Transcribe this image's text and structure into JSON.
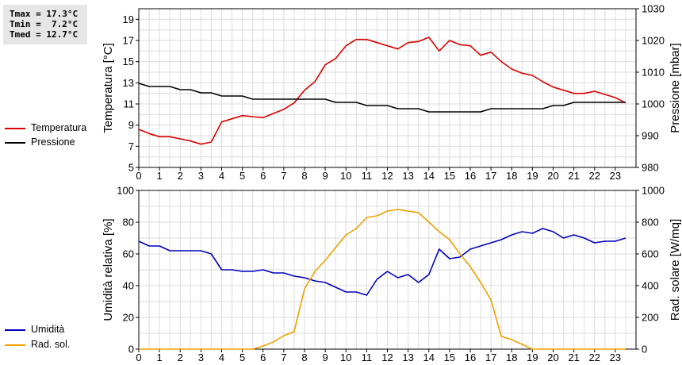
{
  "stats": {
    "tmax": "Tmax = 17.3°C",
    "tmin": "Tmin =  7.2°C",
    "tmed": "Tmed = 12.7°C"
  },
  "legend_top": [
    {
      "label": "Temperatura",
      "color": "#dd0000"
    },
    {
      "label": "Pressione",
      "color": "#000000"
    }
  ],
  "legend_bottom": [
    {
      "label": "Umidità",
      "color": "#0000bb"
    },
    {
      "label": "Rad. sol.",
      "color": "#f0a000"
    }
  ],
  "chart_data": [
    {
      "type": "line",
      "xlim": [
        0,
        24
      ],
      "x_ticks": [
        0,
        1,
        2,
        3,
        4,
        5,
        6,
        7,
        8,
        9,
        10,
        11,
        12,
        13,
        14,
        15,
        16,
        17,
        18,
        19,
        20,
        21,
        22,
        23
      ],
      "grid": true,
      "ylabel": "Temperatura [°C]",
      "ylim": [
        5,
        20
      ],
      "y_ticks": [
        5,
        7,
        9,
        11,
        13,
        15,
        17,
        19
      ],
      "y2label": "Pressione [mbar]",
      "y2lim": [
        980,
        1030
      ],
      "y2_ticks": [
        980,
        990,
        1000,
        1010,
        1020,
        1030
      ],
      "series": [
        {
          "name": "Temperatura",
          "axis": "left",
          "color": "#dd0000",
          "x": [
            0,
            0.5,
            1,
            1.5,
            2,
            2.5,
            3,
            3.5,
            4,
            4.5,
            5,
            5.5,
            6,
            6.5,
            7,
            7.5,
            8,
            8.5,
            9,
            9.5,
            10,
            10.5,
            11,
            11.5,
            12,
            12.5,
            13,
            13.5,
            14,
            14.5,
            15,
            15.5,
            16,
            16.5,
            17,
            17.5,
            18,
            18.5,
            19,
            19.5,
            20,
            20.5,
            21,
            21.5,
            22,
            22.5,
            23,
            23.5
          ],
          "values": [
            8.6,
            8.2,
            7.9,
            7.9,
            7.7,
            7.5,
            7.2,
            7.4,
            9.3,
            9.6,
            9.9,
            9.8,
            9.7,
            10.1,
            10.5,
            11.1,
            12.3,
            13.1,
            14.7,
            15.3,
            16.5,
            17.1,
            17.1,
            16.8,
            16.5,
            16.2,
            16.8,
            16.9,
            17.3,
            16.0,
            17.0,
            16.6,
            16.5,
            15.6,
            15.9,
            15.0,
            14.3,
            13.9,
            13.7,
            13.1,
            12.6,
            12.3,
            12.0,
            12.0,
            12.2,
            11.9,
            11.6,
            11.1
          ]
        },
        {
          "name": "Pressione",
          "axis": "right",
          "color": "#000000",
          "x": [
            0,
            0.5,
            1,
            1.5,
            2,
            2.5,
            3,
            3.5,
            4,
            4.5,
            5,
            5.5,
            6,
            6.5,
            7,
            7.5,
            8,
            8.5,
            9,
            9.5,
            10,
            10.5,
            11,
            11.5,
            12,
            12.5,
            13,
            13.5,
            14,
            14.5,
            15,
            15.5,
            16,
            16.5,
            17,
            17.5,
            18,
            18.5,
            19,
            19.5,
            20,
            20.5,
            21,
            21.5,
            22,
            22.5,
            23,
            23.5
          ],
          "values": [
            1006.5,
            1005.5,
            1005.5,
            1005.5,
            1004.5,
            1004.5,
            1003.5,
            1003.5,
            1002.5,
            1002.5,
            1002.5,
            1001.5,
            1001.5,
            1001.5,
            1001.5,
            1001.5,
            1001.5,
            1001.5,
            1001.5,
            1000.5,
            1000.5,
            1000.5,
            999.5,
            999.5,
            999.5,
            998.5,
            998.5,
            998.5,
            997.5,
            997.5,
            997.5,
            997.5,
            997.5,
            997.5,
            998.5,
            998.5,
            998.5,
            998.5,
            998.5,
            998.5,
            999.5,
            999.5,
            1000.5,
            1000.5,
            1000.5,
            1000.5,
            1000.5,
            1000.5
          ]
        }
      ]
    },
    {
      "type": "line",
      "xlim": [
        0,
        24
      ],
      "x_ticks": [
        0,
        1,
        2,
        3,
        4,
        5,
        6,
        7,
        8,
        9,
        10,
        11,
        12,
        13,
        14,
        15,
        16,
        17,
        18,
        19,
        20,
        21,
        22,
        23
      ],
      "grid": true,
      "ylabel": "Umidità relativa [%]",
      "ylim": [
        0,
        100
      ],
      "y_ticks": [
        0,
        20,
        40,
        60,
        80,
        100
      ],
      "y2label": "Rad. solare [W/mq]",
      "y2lim": [
        0,
        1000
      ],
      "y2_ticks": [
        0,
        200,
        400,
        600,
        800,
        1000
      ],
      "series": [
        {
          "name": "Umidità",
          "axis": "left",
          "color": "#0000bb",
          "x": [
            0,
            0.5,
            1,
            1.5,
            2,
            2.5,
            3,
            3.5,
            4,
            4.5,
            5,
            5.5,
            6,
            6.5,
            7,
            7.5,
            8,
            8.5,
            9,
            9.5,
            10,
            10.5,
            11,
            11.5,
            12,
            12.5,
            13,
            13.5,
            14,
            14.5,
            15,
            15.5,
            16,
            16.5,
            17,
            17.5,
            18,
            18.5,
            19,
            19.5,
            20,
            20.5,
            21,
            21.5,
            22,
            22.5,
            23,
            23.5
          ],
          "values": [
            68,
            65,
            65,
            62,
            62,
            62,
            62,
            60,
            50,
            50,
            49,
            49,
            50,
            48,
            48,
            46,
            45,
            43,
            42,
            39,
            36,
            36,
            34,
            44,
            49,
            45,
            47,
            42,
            47,
            63,
            57,
            58,
            63,
            65,
            67,
            69,
            72,
            74,
            73,
            76,
            74,
            70,
            72,
            70,
            67,
            68,
            68,
            70
          ]
        },
        {
          "name": "Rad. sol.",
          "axis": "right",
          "color": "#f0a000",
          "x": [
            0,
            0.5,
            1,
            1.5,
            2,
            2.5,
            3,
            3.5,
            4,
            4.5,
            5,
            5.5,
            6,
            6.5,
            7,
            7.5,
            8,
            8.5,
            9,
            9.5,
            10,
            10.5,
            11,
            11.5,
            12,
            12.5,
            13,
            13.5,
            14,
            14.5,
            15,
            15.5,
            16,
            16.5,
            17,
            17.5,
            18,
            18.5,
            19,
            19.5,
            20,
            20.5,
            21,
            21.5,
            22,
            22.5,
            23,
            23.5
          ],
          "values": [
            0,
            0,
            0,
            0,
            0,
            0,
            0,
            0,
            0,
            0,
            0,
            0,
            20,
            45,
            85,
            110,
            380,
            490,
            560,
            640,
            720,
            760,
            830,
            840,
            870,
            880,
            870,
            860,
            800,
            740,
            690,
            600,
            520,
            420,
            310,
            80,
            60,
            30,
            0,
            0,
            0,
            0,
            0,
            0,
            0,
            0,
            0,
            0
          ]
        }
      ]
    }
  ]
}
